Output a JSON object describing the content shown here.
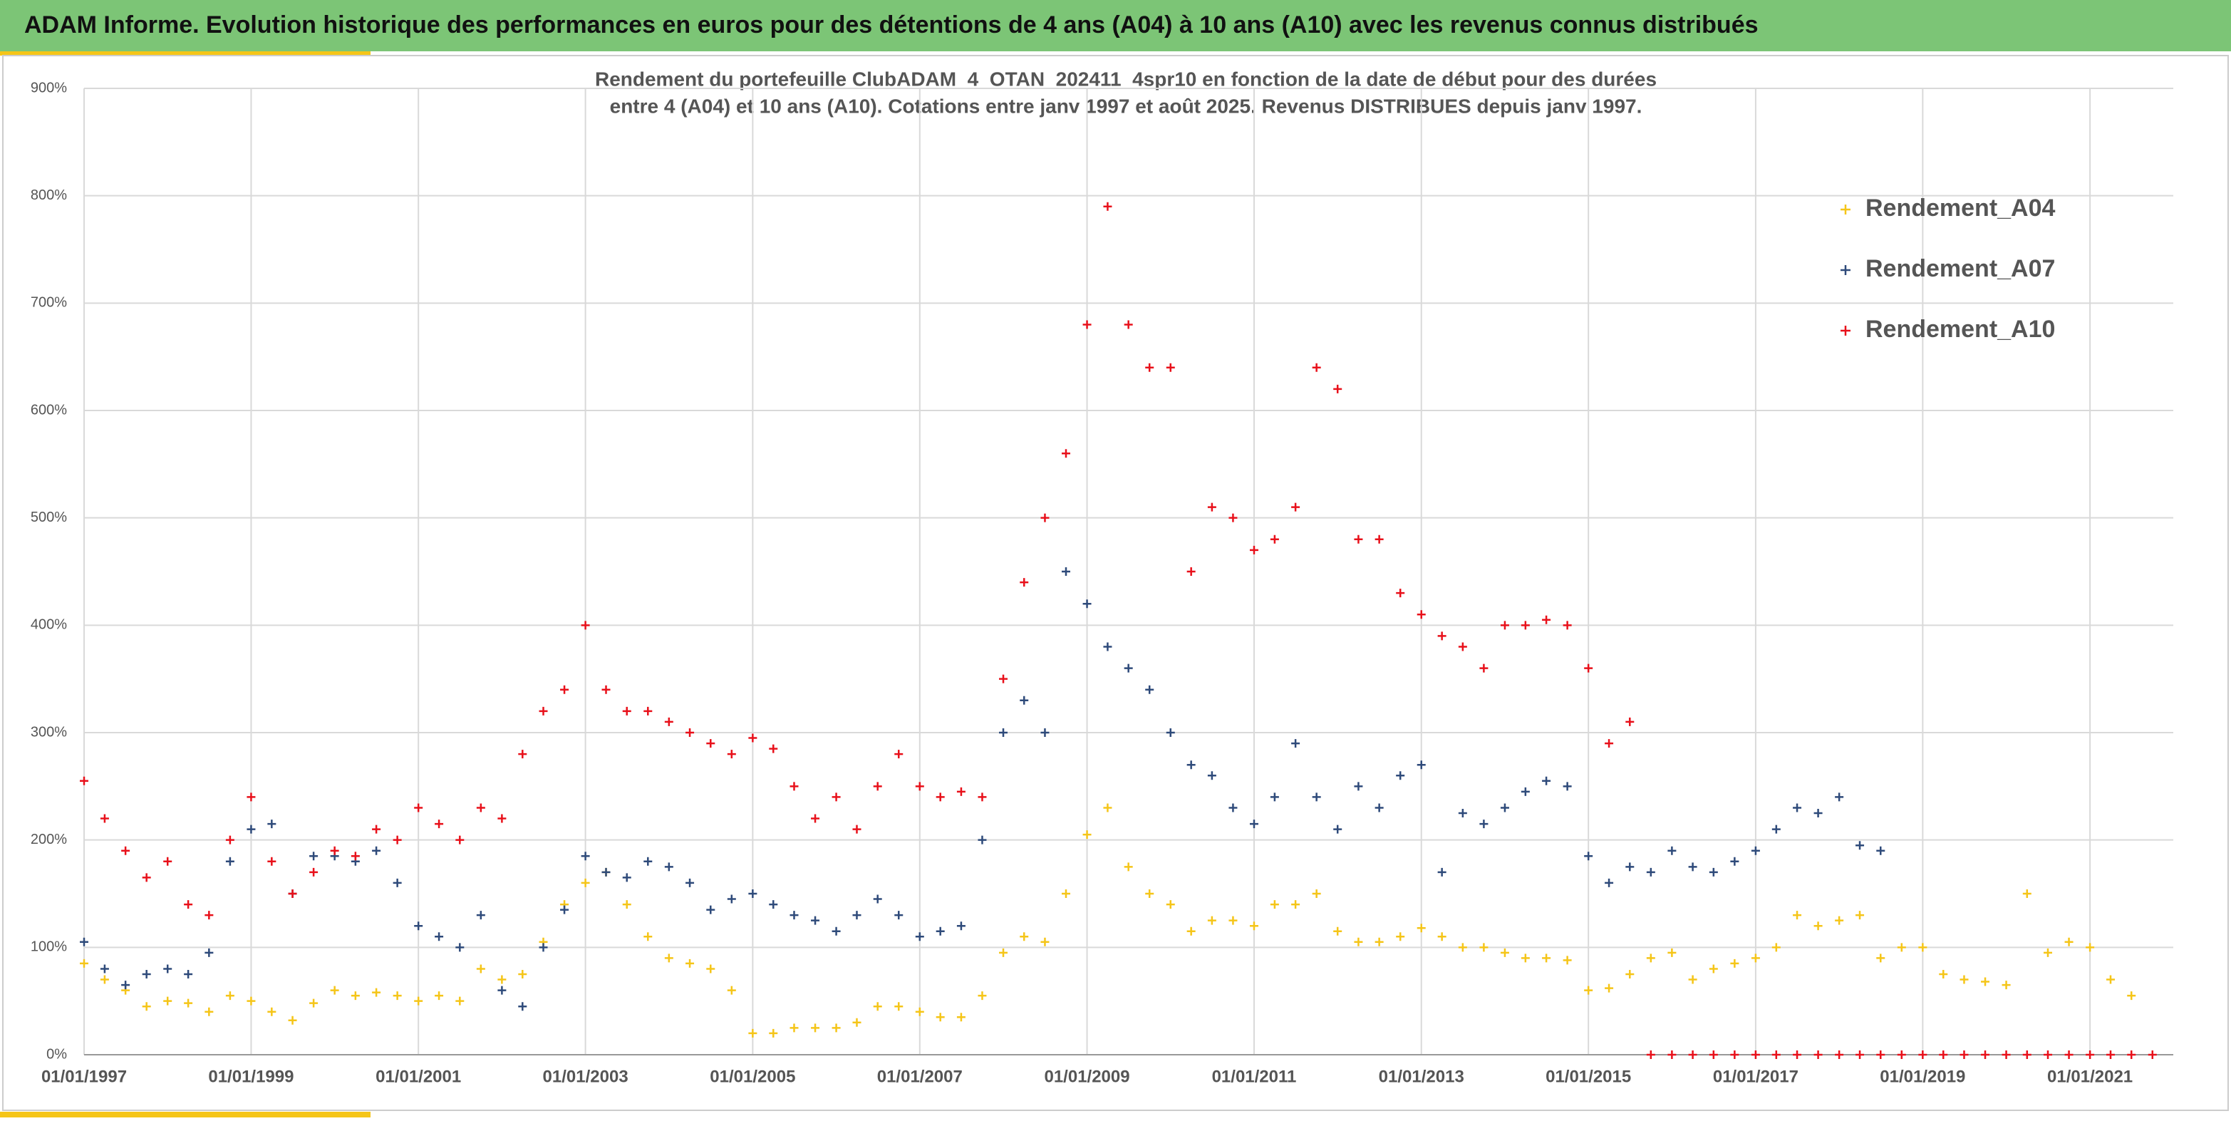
{
  "header": {
    "title": "ADAM Informe. Evolution historique des performances en euros pour des détentions de 4 ans (A04) à 10 ans (A10) avec les revenus connus distribués"
  },
  "chart_data": {
    "type": "scatter",
    "title": "Rendement du portefeuille ClubADAM_4_OTAN_202411_4spr10  en fonction de la date de début pour des durées",
    "subtitle": "entre 4 (A04) et 10 ans (A10). Cotations entre janv 1997 et août 2025. Revenus DISTRIBUES depuis janv 1997.",
    "x": [
      "1997-01-01",
      "1997-04-01",
      "1997-07-01",
      "1997-10-01",
      "1998-01-01",
      "1998-04-01",
      "1998-07-01",
      "1998-10-01",
      "1999-01-01",
      "1999-04-01",
      "1999-07-01",
      "1999-10-01",
      "2000-01-01",
      "2000-04-01",
      "2000-07-01",
      "2000-10-01",
      "2001-01-01",
      "2001-04-01",
      "2001-07-01",
      "2001-10-01",
      "2002-01-01",
      "2002-04-01",
      "2002-07-01",
      "2002-10-01",
      "2003-01-01",
      "2003-04-01",
      "2003-07-01",
      "2003-10-01",
      "2004-01-01",
      "2004-04-01",
      "2004-07-01",
      "2004-10-01",
      "2005-01-01",
      "2005-04-01",
      "2005-07-01",
      "2005-10-01",
      "2006-01-01",
      "2006-04-01",
      "2006-07-01",
      "2006-10-01",
      "2007-01-01",
      "2007-04-01",
      "2007-07-01",
      "2007-10-01",
      "2008-01-01",
      "2008-04-01",
      "2008-07-01",
      "2008-10-01",
      "2009-01-01",
      "2009-04-01",
      "2009-07-01",
      "2009-10-01",
      "2010-01-01",
      "2010-04-01",
      "2010-07-01",
      "2010-10-01",
      "2011-01-01",
      "2011-04-01",
      "2011-07-01",
      "2011-10-01",
      "2012-01-01",
      "2012-04-01",
      "2012-07-01",
      "2012-10-01",
      "2013-01-01",
      "2013-04-01",
      "2013-07-01",
      "2013-10-01",
      "2014-01-01",
      "2014-04-01",
      "2014-07-01",
      "2014-10-01",
      "2015-01-01",
      "2015-04-01",
      "2015-07-01",
      "2015-10-01",
      "2016-01-01",
      "2016-04-01",
      "2016-07-01",
      "2016-10-01",
      "2017-01-01",
      "2017-04-01",
      "2017-07-01",
      "2017-10-01",
      "2018-01-01",
      "2018-04-01",
      "2018-07-01",
      "2018-10-01",
      "2019-01-01",
      "2019-04-01",
      "2019-07-01",
      "2019-10-01",
      "2020-01-01",
      "2020-04-01",
      "2020-07-01",
      "2020-10-01",
      "2021-01-01",
      "2021-04-01",
      "2021-07-01",
      "2021-10-01"
    ],
    "series": [
      {
        "name": "Rendement_A04",
        "color": "#f5c518",
        "values": [
          85,
          70,
          60,
          45,
          50,
          48,
          40,
          55,
          50,
          40,
          32,
          48,
          60,
          55,
          58,
          55,
          50,
          55,
          50,
          80,
          70,
          75,
          105,
          140,
          160,
          170,
          140,
          110,
          90,
          85,
          80,
          60,
          20,
          20,
          25,
          25,
          25,
          30,
          45,
          45,
          40,
          35,
          35,
          55,
          95,
          110,
          105,
          150,
          205,
          230,
          175,
          150,
          140,
          115,
          125,
          125,
          120,
          140,
          140,
          150,
          115,
          105,
          105,
          110,
          118,
          110,
          100,
          100,
          95,
          90,
          90,
          88,
          60,
          62,
          75,
          90,
          95,
          70,
          80,
          85,
          90,
          100,
          130,
          120,
          125,
          130,
          90,
          100,
          100,
          75,
          70,
          68,
          65,
          150,
          95,
          105,
          100,
          70,
          55,
          null
        ]
      },
      {
        "name": "Rendement_A07",
        "color": "#2e4a7a",
        "values": [
          105,
          80,
          65,
          75,
          80,
          75,
          95,
          180,
          210,
          215,
          150,
          185,
          185,
          180,
          190,
          160,
          120,
          110,
          100,
          130,
          60,
          45,
          100,
          135,
          185,
          170,
          165,
          180,
          175,
          160,
          135,
          145,
          150,
          140,
          130,
          125,
          115,
          130,
          145,
          130,
          110,
          115,
          120,
          200,
          300,
          330,
          300,
          450,
          420,
          380,
          360,
          340,
          300,
          270,
          260,
          230,
          215,
          240,
          290,
          240,
          210,
          250,
          230,
          260,
          270,
          170,
          225,
          215,
          230,
          245,
          255,
          250,
          185,
          160,
          175,
          170,
          190,
          175,
          170,
          180,
          190,
          210,
          230,
          225,
          240,
          195,
          190,
          null,
          null,
          null,
          null,
          null,
          null,
          null,
          null,
          null,
          null,
          null,
          null,
          null
        ]
      },
      {
        "name": "Rendement_A10",
        "color": "#e8101a",
        "values": [
          255,
          220,
          190,
          165,
          180,
          140,
          130,
          200,
          240,
          180,
          150,
          170,
          190,
          185,
          210,
          200,
          230,
          215,
          200,
          230,
          220,
          280,
          320,
          340,
          400,
          340,
          320,
          320,
          310,
          300,
          290,
          280,
          295,
          285,
          250,
          220,
          240,
          210,
          250,
          280,
          250,
          240,
          245,
          240,
          350,
          440,
          500,
          560,
          680,
          790,
          680,
          640,
          640,
          450,
          510,
          500,
          470,
          480,
          510,
          640,
          620,
          480,
          480,
          430,
          410,
          390,
          380,
          360,
          400,
          400,
          405,
          400,
          360,
          290,
          310,
          0,
          0,
          0,
          0,
          0,
          0,
          0,
          0,
          0,
          0,
          0,
          0,
          0,
          0,
          0,
          0,
          0,
          0,
          0,
          0,
          0,
          0,
          0,
          0,
          0
        ]
      }
    ],
    "xlim": [
      "1997-01-01",
      "2021-12-31"
    ],
    "xticks": [
      {
        "value": "1997-01-01",
        "label": "01/01/1997"
      },
      {
        "value": "1999-01-01",
        "label": "01/01/1999"
      },
      {
        "value": "2001-01-01",
        "label": "01/01/2001"
      },
      {
        "value": "2003-01-01",
        "label": "01/01/2003"
      },
      {
        "value": "2005-01-01",
        "label": "01/01/2005"
      },
      {
        "value": "2007-01-01",
        "label": "01/01/2007"
      },
      {
        "value": "2009-01-01",
        "label": "01/01/2009"
      },
      {
        "value": "2011-01-01",
        "label": "01/01/2011"
      },
      {
        "value": "2013-01-01",
        "label": "01/01/2013"
      },
      {
        "value": "2015-01-01",
        "label": "01/01/2015"
      },
      {
        "value": "2017-01-01",
        "label": "01/01/2017"
      },
      {
        "value": "2019-01-01",
        "label": "01/01/2019"
      },
      {
        "value": "2021-01-01",
        "label": "01/01/2021"
      }
    ],
    "ylim": [
      0,
      900
    ],
    "yticks": [
      {
        "value": 0,
        "label": "0%"
      },
      {
        "value": 100,
        "label": "100%"
      },
      {
        "value": 200,
        "label": "200%"
      },
      {
        "value": 300,
        "label": "300%"
      },
      {
        "value": 400,
        "label": "400%"
      },
      {
        "value": 500,
        "label": "500%"
      },
      {
        "value": 600,
        "label": "600%"
      },
      {
        "value": 700,
        "label": "700%"
      },
      {
        "value": 800,
        "label": "800%"
      },
      {
        "value": 900,
        "label": "900%"
      }
    ],
    "grid": true,
    "legend": "upper right"
  }
}
